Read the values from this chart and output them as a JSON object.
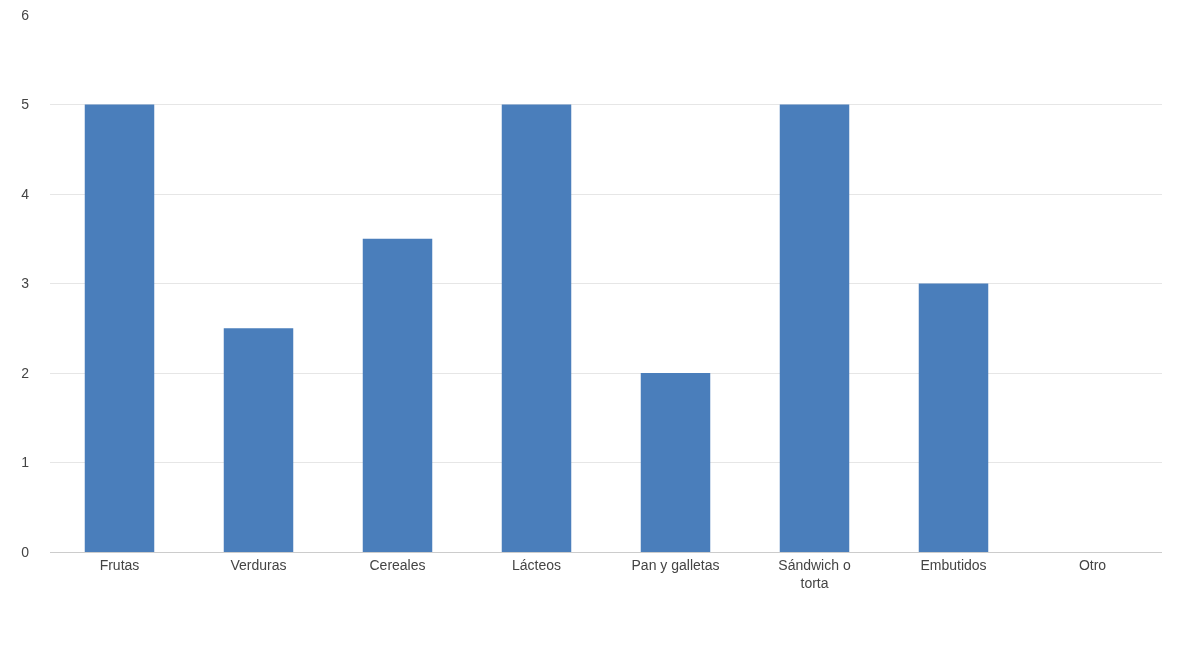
{
  "chart_data": {
    "type": "bar",
    "categories": [
      "Frutas",
      "Verduras",
      "Cereales",
      "Lácteos",
      "Pan y galletas",
      "Sándwich o torta",
      "Embutidos",
      "Otro"
    ],
    "values": [
      5,
      2.5,
      3.5,
      5,
      2,
      5,
      3,
      0
    ],
    "color": "#4a7ebb",
    "ylim": [
      0,
      6
    ],
    "yticks": [
      0,
      1,
      2,
      3,
      4,
      5,
      6
    ],
    "grid": "y"
  }
}
